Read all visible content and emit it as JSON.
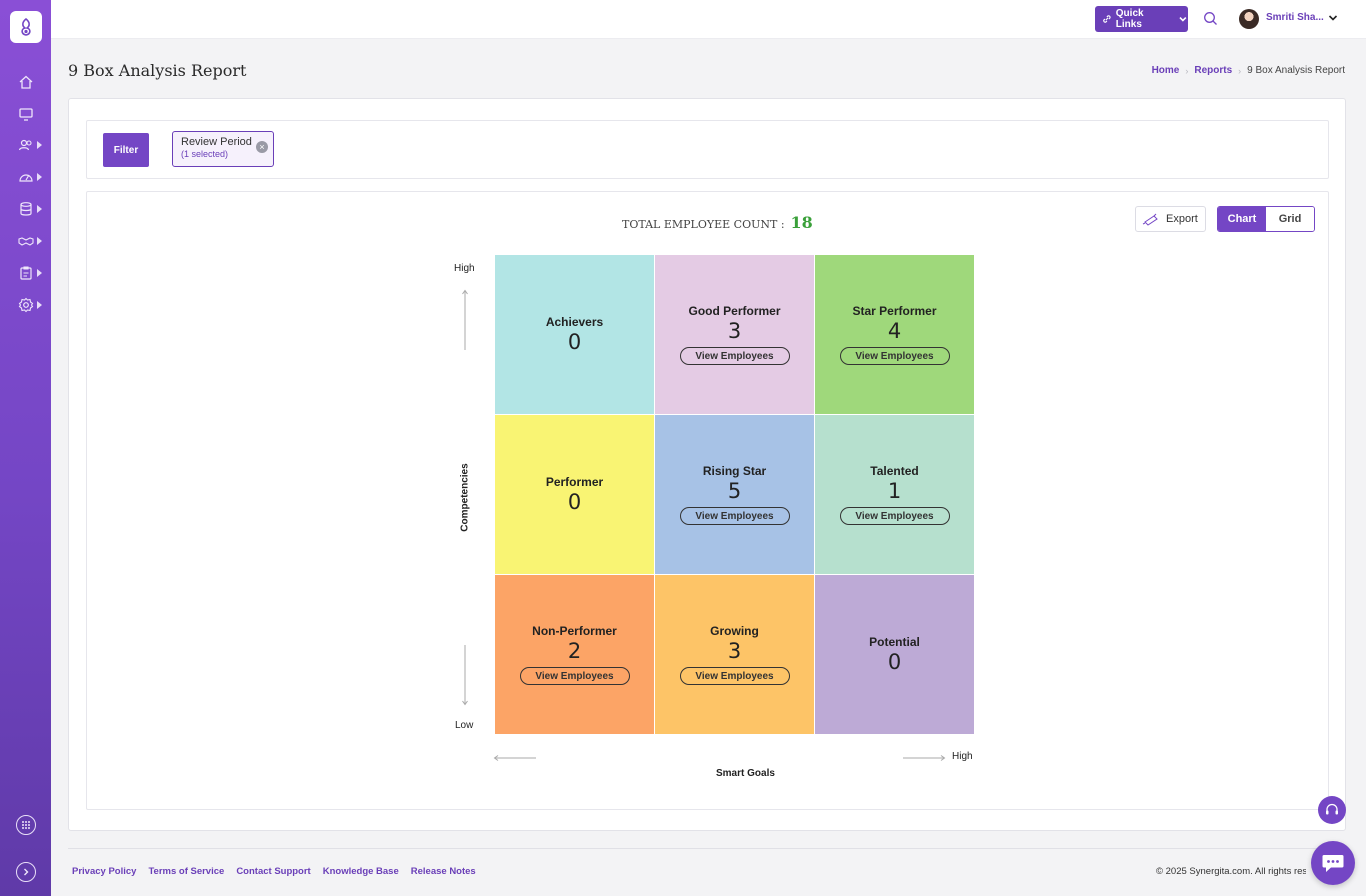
{
  "topbar": {
    "quick_links_label": "Quick Links",
    "user_name": "Smriti Sha..."
  },
  "page": {
    "title": "9 Box Analysis Report",
    "breadcrumb": [
      "Home",
      "Reports",
      "9 Box Analysis Report"
    ]
  },
  "filter": {
    "button_label": "Filter",
    "chip_label": "Review Period",
    "chip_sub": "(1 selected)"
  },
  "report": {
    "total_label": "TOTAL EMPLOYEE COUNT :",
    "total_value": "18",
    "export_label": "Export",
    "view_chart_label": "Chart",
    "view_grid_label": "Grid",
    "view_employees_label": "View Employees"
  },
  "axes": {
    "y_title": "Competencies",
    "y_high": "High",
    "y_low": "Low",
    "x_title": "Smart Goals",
    "x_high": "High"
  },
  "chart_data": {
    "type": "table",
    "boxes": [
      {
        "name": "Achievers",
        "count": "0",
        "color": "#b2e5e5",
        "has_view": false
      },
      {
        "name": "Good Performer",
        "count": "3",
        "color": "#e4cbe4",
        "has_view": true
      },
      {
        "name": "Star Performer",
        "count": "4",
        "color": "#9fd87b",
        "has_view": true
      },
      {
        "name": "Performer",
        "count": "0",
        "color": "#f9f473",
        "has_view": false
      },
      {
        "name": "Rising Star",
        "count": "5",
        "color": "#a7c2e6",
        "has_view": true
      },
      {
        "name": "Talented",
        "count": "1",
        "color": "#b6e0ce",
        "has_view": true
      },
      {
        "name": "Non-Performer",
        "count": "2",
        "color": "#fca466",
        "has_view": true
      },
      {
        "name": "Growing",
        "count": "3",
        "color": "#fdc467",
        "has_view": true
      },
      {
        "name": "Potential",
        "count": "0",
        "color": "#bdaad6",
        "has_view": false
      }
    ]
  },
  "footer": {
    "links": [
      "Privacy Policy",
      "Terms of Service",
      "Contact Support",
      "Knowledge Base",
      "Release Notes"
    ],
    "copyright": "© 2025 Synergita.com. All rights reserved."
  },
  "colors": {
    "accent": "#7446c5",
    "total_count": "#3aa03a"
  }
}
